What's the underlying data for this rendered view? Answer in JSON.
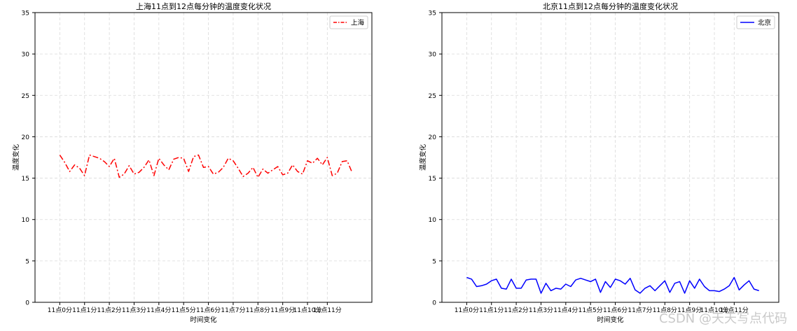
{
  "chart_data": [
    {
      "type": "line",
      "title": "上海11点到12点每分钟的温度变化状况",
      "xlabel": "时间变化",
      "ylabel": "温度变化",
      "ylim": [
        0,
        35
      ],
      "yticks": [
        0,
        5,
        10,
        15,
        20,
        25,
        30,
        35
      ],
      "xlim": [
        -5,
        63
      ],
      "xtick_positions": [
        0,
        5,
        10,
        15,
        20,
        25,
        30,
        35,
        40,
        45,
        50,
        54
      ],
      "xtick_labels": [
        "11点0分",
        "11点1分",
        "11点2分",
        "11点3分",
        "11点4分",
        "11点5分",
        "11点6分",
        "11点7分",
        "11点8分",
        "11点9分",
        "11点10分",
        "11点11分"
      ],
      "grid": true,
      "legend_position": "top-right",
      "series": [
        {
          "name": "上海",
          "color": "#ff0000",
          "line_style": "dash-dot",
          "x": [
            0,
            1,
            2,
            3,
            4,
            5,
            6,
            7,
            8,
            9,
            10,
            11,
            12,
            13,
            14,
            15,
            16,
            17,
            18,
            19,
            20,
            21,
            22,
            23,
            24,
            25,
            26,
            27,
            28,
            29,
            30,
            31,
            32,
            33,
            34,
            35,
            36,
            37,
            38,
            39,
            40,
            41,
            42,
            43,
            44,
            45,
            46,
            47,
            48,
            49,
            50,
            51,
            52,
            53,
            54,
            55,
            56,
            57,
            58,
            59
          ],
          "values": [
            17.8,
            16.9,
            15.8,
            16.6,
            16.2,
            15.3,
            17.8,
            17.6,
            17.4,
            17.0,
            16.4,
            17.4,
            15.1,
            15.5,
            16.5,
            15.5,
            15.7,
            16.3,
            17.2,
            15.3,
            17.4,
            16.6,
            16.0,
            17.3,
            17.5,
            17.4,
            15.8,
            17.6,
            17.8,
            16.3,
            16.4,
            15.5,
            15.7,
            16.3,
            17.4,
            17.1,
            16.2,
            15.2,
            15.6,
            16.3,
            15.1,
            16.1,
            15.6,
            16.0,
            16.4,
            15.4,
            15.6,
            16.6,
            15.8,
            15.5,
            17.1,
            16.8,
            17.4,
            16.6,
            17.5,
            15.3,
            15.6,
            17.0,
            17.1,
            15.7
          ]
        }
      ]
    },
    {
      "type": "line",
      "title": "北京11点到12点每分钟的温度变化状况",
      "xlabel": "时间变化",
      "ylabel": "温度变化",
      "ylim": [
        0,
        35
      ],
      "yticks": [
        0,
        5,
        10,
        15,
        20,
        25,
        30,
        35
      ],
      "xlim": [
        -5,
        63
      ],
      "xtick_positions": [
        0,
        5,
        10,
        15,
        20,
        25,
        30,
        35,
        40,
        45,
        50,
        54
      ],
      "xtick_labels": [
        "11点0分",
        "11点1分",
        "11点2分",
        "11点3分",
        "11点4分",
        "11点5分",
        "11点6分",
        "11点7分",
        "11点8分",
        "11点9分",
        "11点10分",
        "11点11分"
      ],
      "grid": true,
      "legend_position": "top-right",
      "series": [
        {
          "name": "北京",
          "color": "#0000ff",
          "line_style": "solid",
          "x": [
            0,
            1,
            2,
            3,
            4,
            5,
            6,
            7,
            8,
            9,
            10,
            11,
            12,
            13,
            14,
            15,
            16,
            17,
            18,
            19,
            20,
            21,
            22,
            23,
            24,
            25,
            26,
            27,
            28,
            29,
            30,
            31,
            32,
            33,
            34,
            35,
            36,
            37,
            38,
            39,
            40,
            41,
            42,
            43,
            44,
            45,
            46,
            47,
            48,
            49,
            50,
            51,
            52,
            53,
            54,
            55,
            56,
            57,
            58,
            59
          ],
          "values": [
            3.0,
            2.8,
            1.9,
            2.0,
            2.2,
            2.6,
            2.8,
            1.7,
            1.6,
            2.8,
            1.7,
            1.7,
            2.7,
            2.8,
            2.8,
            1.1,
            2.3,
            1.4,
            1.7,
            1.6,
            2.2,
            1.9,
            2.7,
            2.9,
            2.7,
            2.5,
            2.8,
            1.2,
            2.5,
            1.8,
            2.8,
            2.6,
            2.2,
            2.9,
            1.5,
            1.1,
            1.7,
            2.0,
            1.4,
            2.0,
            2.6,
            1.2,
            2.3,
            2.5,
            1.1,
            2.6,
            1.7,
            2.8,
            1.9,
            1.4,
            1.4,
            1.3,
            1.6,
            2.0,
            3.0,
            1.5,
            2.1,
            2.6,
            1.6,
            1.4
          ]
        }
      ]
    }
  ],
  "watermark": "CSDN @天天写点代码"
}
